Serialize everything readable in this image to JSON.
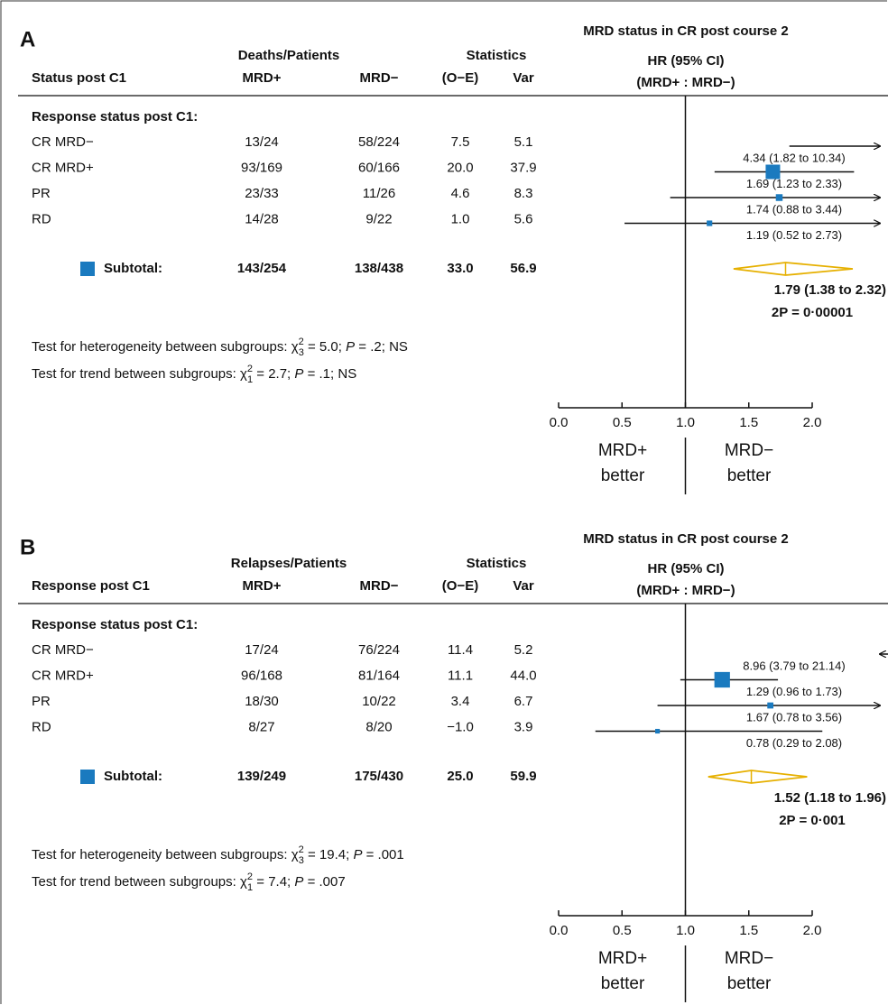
{
  "chart_data": [
    {
      "type": "forest",
      "panel": "A",
      "title": "MRD status in CR post course 2",
      "group_header": "Deaths/Patients",
      "stats_header": "Statistics",
      "columns": [
        "Status post C1",
        "MRD+",
        "MRD−",
        "(O−E)",
        "Var"
      ],
      "hr_header": [
        "HR (95% CI)",
        "(MRD+ : MRD−)"
      ],
      "section": "Response status post C1:",
      "rows": [
        {
          "label": "CR MRD−",
          "mrd_pos": "13/24",
          "mrd_neg": "58/224",
          "o_e": 7.5,
          "var": 5.1,
          "hr": 4.34,
          "ci": [
            1.82,
            10.34
          ],
          "hr_label": "4.34 (1.82 to 10.34)"
        },
        {
          "label": "CR MRD+",
          "mrd_pos": "93/169",
          "mrd_neg": "60/166",
          "o_e": {
            "value": 20.0,
            "label": "20.0"
          },
          "var": 37.9,
          "hr": 1.69,
          "ci": [
            1.23,
            2.33
          ],
          "hr_label": "1.69 (1.23 to 2.33)"
        },
        {
          "label": "PR",
          "mrd_pos": "23/33",
          "mrd_neg": "11/26",
          "o_e": 4.6,
          "var": 8.3,
          "hr": 1.74,
          "ci": [
            0.88,
            3.44
          ],
          "hr_label": "1.74 (0.88 to 3.44)"
        },
        {
          "label": "RD",
          "mrd_pos": "14/28",
          "mrd_neg": "9/22",
          "o_e": {
            "value": 1.0,
            "label": "1.0"
          },
          "var": 5.6,
          "hr": 1.19,
          "ci": [
            0.52,
            2.73
          ],
          "hr_label": "1.19 (0.52 to 2.73)"
        }
      ],
      "subtotal": {
        "label": "Subtotal:",
        "mrd_pos": "143/254",
        "mrd_neg": "138/438",
        "o_e": {
          "value": 33.0,
          "label": "33.0"
        },
        "var": 56.9,
        "hr": 1.79,
        "ci": [
          1.38,
          2.32
        ],
        "hr_label": "1.79 (1.38 to 2.32)",
        "p_label": "2P = 0·00001"
      },
      "tests": [
        {
          "lead": "Test for heterogeneity between subgroups: ",
          "symbol": "χ",
          "sup": "2",
          "sub": "3",
          "stat": " = 5.0; ",
          "p": "P",
          "rest": " = .2; NS"
        },
        {
          "lead": "Test for trend between subgroups: ",
          "symbol": "χ",
          "sup": "2",
          "sub": "1",
          "stat": " = 2.7; ",
          "p": "P",
          "rest": " = .1; NS"
        }
      ],
      "xlim": [
        0,
        2
      ],
      "xticks": [
        {
          "value": 0,
          "label": "0.0"
        },
        0.5,
        {
          "value": 1,
          "label": "1.0"
        },
        1.5,
        {
          "value": 2,
          "label": "2.0"
        }
      ],
      "favor_left": [
        "MRD+",
        "better"
      ],
      "favor_right": [
        "MRD−",
        "better"
      ],
      "color": "#1a7abf",
      "diamond_color": "#e6b000"
    },
    {
      "type": "forest",
      "panel": "B",
      "title": "MRD status in CR post course 2",
      "group_header": "Relapses/Patients",
      "stats_header": "Statistics",
      "columns": [
        "Response post C1",
        "MRD+",
        "MRD−",
        "(O−E)",
        "Var"
      ],
      "hr_header": [
        "HR (95% CI)",
        "(MRD+ : MRD−)"
      ],
      "section": "Response status post C1:",
      "rows": [
        {
          "label": "CR MRD−",
          "mrd_pos": "17/24",
          "mrd_neg": "76/224",
          "o_e": 11.4,
          "var": 5.2,
          "hr": 8.96,
          "ci": [
            3.79,
            21.14
          ],
          "hr_label": "8.96 (3.79 to 21.14)"
        },
        {
          "label": "CR MRD+",
          "mrd_pos": "96/168",
          "mrd_neg": "81/164",
          "o_e": 11.1,
          "var": {
            "value": 44.0,
            "label": "44.0"
          },
          "hr": 1.29,
          "ci": [
            0.96,
            1.73
          ],
          "hr_label": "1.29 (0.96 to 1.73)"
        },
        {
          "label": "PR",
          "mrd_pos": "18/30",
          "mrd_neg": "10/22",
          "o_e": 3.4,
          "var": 6.7,
          "hr": 1.67,
          "ci": [
            0.78,
            3.56
          ],
          "hr_label": "1.67 (0.78 to 3.56)"
        },
        {
          "label": "RD",
          "mrd_pos": "8/27",
          "mrd_neg": "8/20",
          "o_e": {
            "value": -1.0,
            "label": "−1.0"
          },
          "var": 3.9,
          "hr": 0.78,
          "ci": [
            0.29,
            2.08
          ],
          "hr_label": "0.78 (0.29 to 2.08)"
        }
      ],
      "subtotal": {
        "label": "Subtotal:",
        "mrd_pos": "139/249",
        "mrd_neg": "175/430",
        "o_e": {
          "value": 25.0,
          "label": "25.0"
        },
        "var": 59.9,
        "hr": 1.52,
        "ci": [
          1.18,
          1.96
        ],
        "hr_label": "1.52 (1.18 to 1.96)",
        "p_label": "2P = 0·001"
      },
      "tests": [
        {
          "lead": "Test for heterogeneity between subgroups: ",
          "symbol": "χ",
          "sup": "2",
          "sub": "3",
          "stat": " = 19.4; ",
          "p": "P",
          "rest": " = .001"
        },
        {
          "lead": "Test for trend between subgroups: ",
          "symbol": "χ",
          "sup": "2",
          "sub": "1",
          "stat": " = 7.4; ",
          "p": "P",
          "rest": " = .007"
        }
      ],
      "xlim": [
        0,
        2
      ],
      "xticks": [
        {
          "value": 0,
          "label": "0.0"
        },
        0.5,
        {
          "value": 1,
          "label": "1.0"
        },
        1.5,
        {
          "value": 2,
          "label": "2.0"
        }
      ],
      "favor_left": [
        "MRD+",
        "better"
      ],
      "favor_right": [
        "MRD−",
        "better"
      ],
      "color": "#1a7abf",
      "diamond_color": "#e6b000"
    }
  ]
}
